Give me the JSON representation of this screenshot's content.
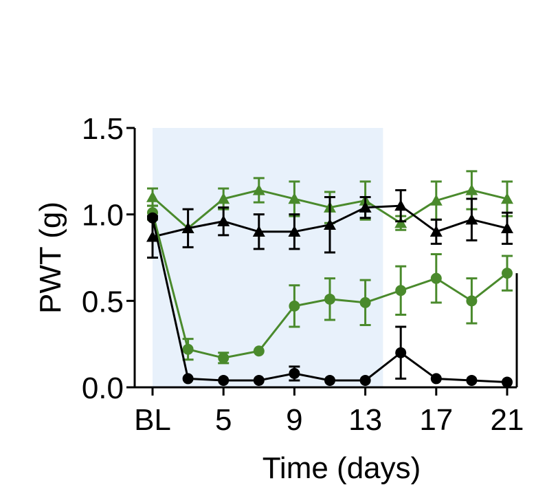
{
  "chart_data": {
    "type": "line",
    "xlabel": "Time (days)",
    "ylabel": "PWT (g)",
    "ylim": [
      0,
      1.5
    ],
    "yticks": [
      "0.0",
      "0.5",
      "1.0",
      "1.5"
    ],
    "xticks": [
      "BL",
      "5",
      "9",
      "13",
      "17",
      "21"
    ],
    "x": [
      "BL",
      "3",
      "5",
      "7",
      "9",
      "11",
      "13",
      "15",
      "17",
      "19",
      "21"
    ],
    "shaded_region": {
      "x_start": "BL",
      "x_end": "14"
    },
    "colors": {
      "black": "#000000",
      "green": "#4a8a2c",
      "shade": "#e8f1fb"
    },
    "series": [
      {
        "color": "#4a8a2c",
        "marker": "triangle",
        "values": [
          1.1,
          0.92,
          1.09,
          1.14,
          1.09,
          1.04,
          1.08,
          0.95,
          1.08,
          1.14,
          1.09
        ],
        "errors": [
          0.05,
          0.0,
          0.06,
          0.07,
          0.1,
          0.09,
          0.11,
          0.04,
          0.11,
          0.11,
          0.1
        ]
      },
      {
        "color": "#000000",
        "marker": "triangle",
        "values": [
          0.87,
          0.92,
          0.96,
          0.9,
          0.9,
          0.94,
          1.04,
          1.05,
          0.9,
          0.97,
          0.92
        ],
        "errors": [
          0.12,
          0.11,
          0.08,
          0.1,
          0.1,
          0.16,
          0.06,
          0.09,
          0.07,
          0.12,
          0.09
        ]
      },
      {
        "color": "#4a8a2c",
        "marker": "circle",
        "values": [
          1.01,
          0.22,
          0.17,
          0.21,
          0.47,
          0.51,
          0.49,
          0.56,
          0.63,
          0.5,
          0.66
        ],
        "errors": [
          0.04,
          0.06,
          0.03,
          0.0,
          0.12,
          0.12,
          0.13,
          0.14,
          0.14,
          0.13,
          0.1
        ]
      },
      {
        "color": "#000000",
        "marker": "circle",
        "values": [
          0.98,
          0.05,
          0.04,
          0.04,
          0.08,
          0.04,
          0.04,
          0.2,
          0.05,
          0.04,
          0.03
        ],
        "errors": [
          0.0,
          0.0,
          0.0,
          0.0,
          0.04,
          0.0,
          0.0,
          0.15,
          0.0,
          0.0,
          0.0
        ]
      }
    ],
    "significance": "***"
  }
}
